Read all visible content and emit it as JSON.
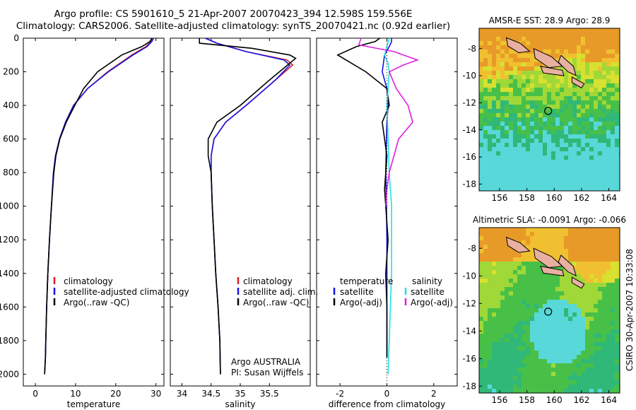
{
  "title_line1": "Argo profile: CS 5901610_5 21-Apr-2007 20070423_394 12.598S 159.556E",
  "title_line2": "Climatology: CARS2006. Satellite-adjusted climatology: synTS_20070421.nc (0.92d earlier)",
  "credit": "CSIRO 30-Apr-2007 10:33:08",
  "colors": {
    "climatology": "#d62020",
    "satellite": "#1414e6",
    "argo": "#000000",
    "salinity_sat": "#22e0e0",
    "salinity_argo": "#e020e0"
  },
  "depth_ticks": [
    "0",
    "200",
    "400",
    "600",
    "800",
    "1000",
    "1200",
    "1400",
    "1600",
    "1800",
    "2000"
  ],
  "chart_data": [
    {
      "type": "line",
      "xlabel": "temperature",
      "xticks": [
        "0",
        "10",
        "20",
        "30"
      ],
      "xlim": [
        -3,
        32
      ],
      "ylim": [
        0,
        2070
      ],
      "legend": [
        "climatology",
        "satellite-adjusted climatology",
        "Argo(..raw -QC)"
      ],
      "series": [
        {
          "name": "climatology",
          "x": [
            29.2,
            28.8,
            27.5,
            24,
            18,
            13,
            9.5,
            7.5,
            6,
            5,
            4.5,
            4,
            3.5,
            3.1,
            2.8,
            2.6,
            2.5,
            2.3
          ],
          "y": [
            0,
            20,
            50,
            100,
            200,
            300,
            400,
            500,
            600,
            700,
            800,
            1000,
            1200,
            1400,
            1600,
            1800,
            1900,
            2000
          ]
        },
        {
          "name": "satellite-adjusted climatology",
          "x": [
            29.4,
            29,
            27.8,
            24.3,
            18.2,
            13,
            9.5,
            7.5,
            6,
            5,
            4.5,
            4,
            3.5,
            3.1,
            2.8,
            2.6,
            2.5,
            2.3
          ],
          "y": [
            0,
            20,
            50,
            100,
            200,
            300,
            400,
            500,
            600,
            700,
            800,
            1000,
            1200,
            1400,
            1600,
            1800,
            1900,
            2000
          ]
        },
        {
          "name": "Argo(..raw -QC)",
          "x": [
            29,
            28.5,
            26.5,
            21.5,
            15.5,
            12,
            9.8,
            7.7,
            6.1,
            5.1,
            4.6,
            4,
            3.5,
            3.1,
            2.8,
            2.6,
            2.5,
            2.3
          ],
          "y": [
            0,
            20,
            50,
            100,
            200,
            300,
            400,
            500,
            600,
            700,
            800,
            1000,
            1200,
            1400,
            1600,
            1800,
            1900,
            2000
          ]
        }
      ]
    },
    {
      "type": "line",
      "xlabel": "salinity",
      "xticks": [
        "34",
        "34.5",
        "35",
        "35.5"
      ],
      "xtick_values": [
        34,
        34.5,
        35,
        35.5
      ],
      "xlim": [
        33.8,
        36.2
      ],
      "ylim": [
        0,
        2070
      ],
      "legend": [
        "climatology",
        "satellite adj. clim.",
        "Argo(..raw -QC)"
      ],
      "annotations": [
        "Argo AUSTRALIA",
        "PI: Susan Wijffels"
      ],
      "series": [
        {
          "name": "climatology",
          "x": [
            34.4,
            34.6,
            35.1,
            35.8,
            35.9,
            35.6,
            35.1,
            34.75,
            34.55,
            34.5,
            34.5,
            34.52,
            34.55,
            34.58,
            34.62,
            34.65,
            34.66
          ],
          "y": [
            0,
            30,
            80,
            130,
            160,
            250,
            400,
            500,
            600,
            700,
            800,
            1000,
            1200,
            1400,
            1600,
            1800,
            2000
          ]
        },
        {
          "name": "satellite adj. clim.",
          "x": [
            34.4,
            34.6,
            35.1,
            35.75,
            35.85,
            35.6,
            35.1,
            34.75,
            34.55,
            34.5,
            34.5,
            34.52,
            34.55,
            34.58,
            34.62,
            34.65,
            34.66
          ],
          "y": [
            0,
            30,
            80,
            130,
            160,
            250,
            400,
            500,
            600,
            700,
            800,
            1000,
            1200,
            1400,
            1600,
            1800,
            2000
          ]
        },
        {
          "name": "Argo(..raw -QC)",
          "x": [
            34.3,
            34.3,
            35.2,
            35.85,
            35.95,
            35.5,
            35,
            34.6,
            34.45,
            34.45,
            34.5,
            34.52,
            34.55,
            34.58,
            34.62,
            34.65,
            34.66
          ],
          "y": [
            0,
            30,
            60,
            100,
            120,
            250,
            400,
            500,
            600,
            700,
            800,
            1000,
            1200,
            1400,
            1600,
            1800,
            2000
          ]
        }
      ]
    },
    {
      "type": "line",
      "xlabel": "difference from climatology",
      "xticks": [
        "-2",
        "0",
        "2"
      ],
      "xtick_values": [
        -2,
        0,
        2
      ],
      "xlim": [
        -3,
        3
      ],
      "ylim": [
        0,
        2070
      ],
      "legend_temperature": [
        "temperature",
        "satellite",
        "Argo(-adj)"
      ],
      "legend_salinity": [
        "salinity",
        "satellite",
        "Argo(-adj)"
      ],
      "series": [
        {
          "name": "temperature satellite",
          "x": [
            0.2,
            0.2,
            0.1,
            -0.1,
            -0.2,
            0,
            0.05,
            0,
            -0.02,
            -0.05,
            -0.02,
            0,
            0,
            0,
            0
          ],
          "y": [
            0,
            20,
            50,
            100,
            200,
            300,
            400,
            500,
            600,
            800,
            1000,
            1200,
            1400,
            1600,
            1900
          ]
        },
        {
          "name": "temperature Argo(-adj)",
          "x": [
            -0.3,
            -0.5,
            -1.3,
            -2.1,
            -1.5,
            -0.9,
            0,
            0.1,
            -0.2,
            0,
            -0.1,
            0.05,
            -0.05,
            0,
            0
          ],
          "y": [
            0,
            20,
            50,
            100,
            150,
            200,
            300,
            400,
            500,
            700,
            900,
            1200,
            1400,
            1600,
            1900
          ]
        },
        {
          "name": "salinity satellite",
          "x": [
            0.1,
            0,
            -0.1,
            0.05,
            0.1,
            0.05,
            0,
            0.05,
            0.1,
            0.2,
            0.2,
            0.1,
            0.05
          ],
          "y": [
            0,
            50,
            100,
            150,
            200,
            300,
            400,
            600,
            800,
            1000,
            1400,
            1800,
            2000
          ]
        },
        {
          "name": "salinity Argo(-adj)",
          "x": [
            -1.1,
            -1.2,
            0.3,
            1.3,
            0.7,
            0.1,
            0.4,
            0.9,
            1.1,
            0.5,
            0.3,
            0.1,
            0,
            -0.05
          ],
          "y": [
            0,
            40,
            80,
            130,
            160,
            200,
            300,
            400,
            500,
            600,
            700,
            800,
            900,
            1000
          ]
        }
      ]
    },
    {
      "type": "heatmap",
      "title": "AMSR-E SST: 28.9 Argo: 28.9",
      "xticks": [
        "156",
        "158",
        "160",
        "162",
        "164"
      ],
      "yticks": [
        "-8",
        "-10",
        "-12",
        "-14",
        "-16",
        "-18"
      ],
      "xlim": [
        154.5,
        164.8
      ],
      "ylim": [
        -18.5,
        -6.5
      ],
      "marker": {
        "lon": 159.556,
        "lat": -12.598
      }
    },
    {
      "type": "heatmap",
      "title": "Altimetric SLA: -0.0091 Argo: -0.066",
      "xticks": [
        "156",
        "158",
        "160",
        "162",
        "164"
      ],
      "yticks": [
        "-8",
        "-10",
        "-12",
        "-14",
        "-16",
        "-18"
      ],
      "xlim": [
        154.5,
        164.8
      ],
      "ylim": [
        -18.5,
        -6.5
      ],
      "marker": {
        "lon": 159.556,
        "lat": -12.598
      }
    }
  ]
}
